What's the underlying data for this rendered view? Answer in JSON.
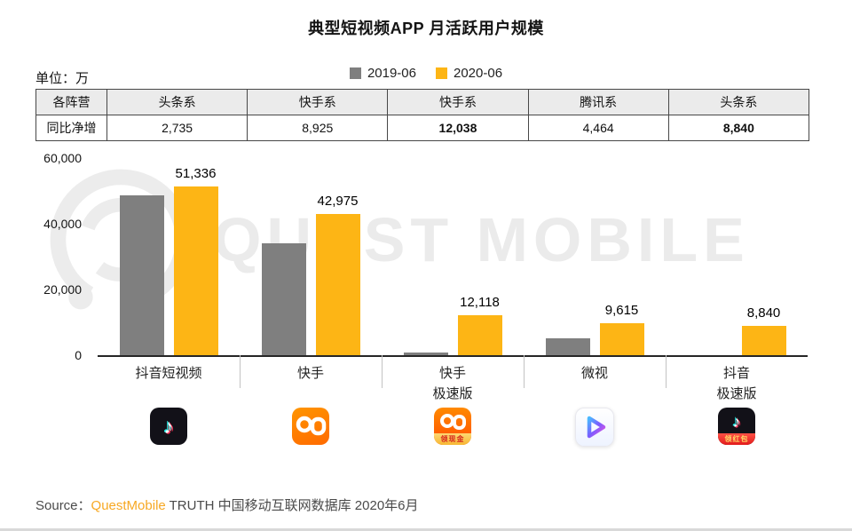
{
  "title": "典型短视频APP 月活跃用户规模",
  "unit_label": "单位：万",
  "watermark_text": "QUEST MOBILE",
  "legend": [
    {
      "label": "2019-06",
      "color": "#7f7f7f"
    },
    {
      "label": "2020-06",
      "color": "#fdb515"
    }
  ],
  "table": {
    "corner_label": "各阵营",
    "camps": [
      "头条系",
      "快手系",
      "快手系",
      "腾讯系",
      "头条系"
    ],
    "row_label": "同比净增",
    "values": [
      "2,735",
      "8,925",
      "12,038",
      "4,464",
      "8,840"
    ],
    "bold": [
      false,
      false,
      true,
      false,
      true
    ]
  },
  "chart_data": {
    "type": "bar",
    "title": "典型短视频APP 月活跃用户规模",
    "unit": "万",
    "categories": [
      "抖音短视频",
      "快手",
      "快手极速版",
      "微视",
      "抖音极速版"
    ],
    "category_lines": [
      [
        "抖音短视频"
      ],
      [
        "快手"
      ],
      [
        "快手",
        "极速版"
      ],
      [
        "微视"
      ],
      [
        "抖音",
        "极速版"
      ]
    ],
    "series": [
      {
        "name": "2019-06",
        "color": "#7f7f7f",
        "values": [
          48601,
          34050,
          80,
          5151,
          0
        ]
      },
      {
        "name": "2020-06",
        "color": "#fdb515",
        "values": [
          51336,
          42975,
          12118,
          9615,
          8840
        ]
      }
    ],
    "value_labels": [
      "51,336",
      "42,975",
      "12,118",
      "9,615",
      "8,840"
    ],
    "xlabel": "",
    "ylabel": "",
    "ylim": [
      0,
      60000
    ],
    "yticks": [
      0,
      20000,
      40000,
      60000
    ],
    "ytick_labels": [
      "0",
      "20,000",
      "40,000",
      "60,000"
    ],
    "grid": false,
    "legend_position": "top"
  },
  "app_icons": [
    {
      "type": "douyin",
      "name": "douyin-app-icon"
    },
    {
      "type": "kuaishou",
      "name": "kuaishou-app-icon"
    },
    {
      "type": "kuaishou-express",
      "name": "kuaishou-express-app-icon",
      "badge": "领现金"
    },
    {
      "type": "weishi",
      "name": "weishi-app-icon"
    },
    {
      "type": "douyin-express",
      "name": "douyin-express-app-icon",
      "badge": "领红包"
    }
  ],
  "source": {
    "prefix": "Source：",
    "brand": "QuestMobile",
    "suffix": " TRUTH 中国移动互联网数据库 2020年6月"
  }
}
